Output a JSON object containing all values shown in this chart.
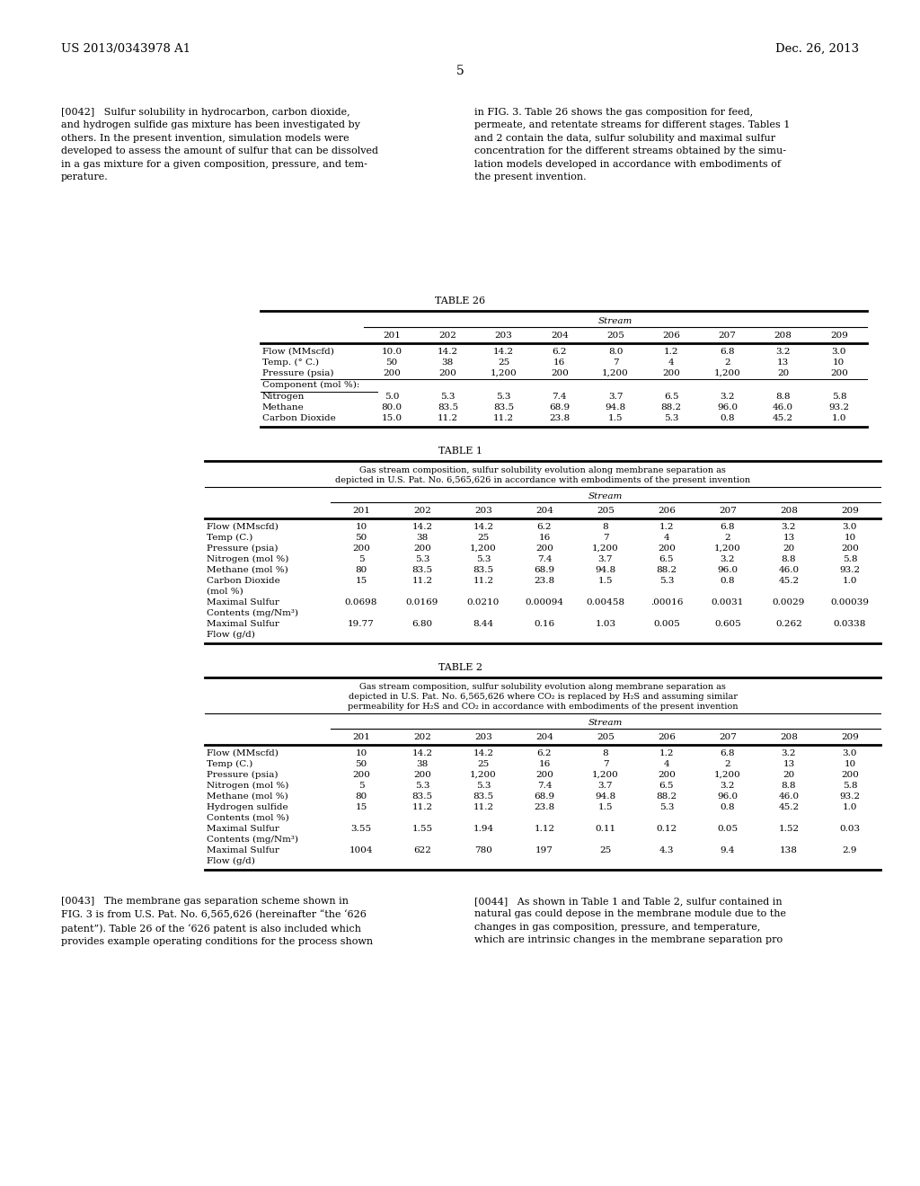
{
  "page_header_left": "US 2013/0343978 A1",
  "page_header_right": "Dec. 26, 2013",
  "page_number": "5",
  "para0042_left": "[0042]   Sulfur solubility in hydrocarbon, carbon dioxide,\nand hydrogen sulfide gas mixture has been investigated by\nothers. In the present invention, simulation models were\ndeveloped to assess the amount of sulfur that can be dissolved\nin a gas mixture for a given composition, pressure, and tem-\nperature.",
  "para0042_right": "in FIG. 3. Table 26 shows the gas composition for feed,\npermeate, and retentate streams for different stages. Tables 1\nand 2 contain the data, sulfur solubility and maximal sulfur\nconcentration for the different streams obtained by the simu-\nlation models developed in accordance with embodiments of\nthe present invention.",
  "table26_title": "TABLE 26",
  "table26_stream_header": "Stream",
  "table26_col_headers": [
    "201",
    "202",
    "203",
    "204",
    "205",
    "206",
    "207",
    "208",
    "209"
  ],
  "table26_rows": [
    [
      "Flow (MMscfd)",
      "10.0",
      "14.2",
      "14.2",
      "6.2",
      "8.0",
      "1.2",
      "6.8",
      "3.2",
      "3.0"
    ],
    [
      "Temp. (° C.)",
      "50",
      "38",
      "25",
      "16",
      "7",
      "4",
      "2",
      "13",
      "10"
    ],
    [
      "Pressure (psia)",
      "200",
      "200",
      "1,200",
      "200",
      "1,200",
      "200",
      "1,200",
      "20",
      "200"
    ],
    [
      "Component (mol %):",
      "",
      "",
      "",
      "",
      "",
      "",
      "",
      "",
      ""
    ],
    [
      "Nitrogen",
      "5.0",
      "5.3",
      "5.3",
      "7.4",
      "3.7",
      "6.5",
      "3.2",
      "8.8",
      "5.8"
    ],
    [
      "Methane",
      "80.0",
      "83.5",
      "83.5",
      "68.9",
      "94.8",
      "88.2",
      "96.0",
      "46.0",
      "93.2"
    ],
    [
      "Carbon Dioxide",
      "15.0",
      "11.2",
      "11.2",
      "23.8",
      "1.5",
      "5.3",
      "0.8",
      "45.2",
      "1.0"
    ]
  ],
  "table1_title": "TABLE 1",
  "table1_caption_line1": "Gas stream composition, sulfur solubility evolution along membrane separation as",
  "table1_caption_line2": "depicted in U.S. Pat. No. 6,565,626 in accordance with embodiments of the present invention",
  "table1_stream_header": "Stream",
  "table1_col_headers": [
    "201",
    "202",
    "203",
    "204",
    "205",
    "206",
    "207",
    "208",
    "209"
  ],
  "table1_rows": [
    [
      "Flow (MMscfd)",
      "10",
      "14.2",
      "14.2",
      "6.2",
      "8",
      "1.2",
      "6.8",
      "3.2",
      "3.0"
    ],
    [
      "Temp (C.)",
      "50",
      "38",
      "25",
      "16",
      "7",
      "4",
      "2",
      "13",
      "10"
    ],
    [
      "Pressure (psia)",
      "200",
      "200",
      "1,200",
      "200",
      "1,200",
      "200",
      "1,200",
      "20",
      "200"
    ],
    [
      "Nitrogen (mol %)",
      "5",
      "5.3",
      "5.3",
      "7.4",
      "3.7",
      "6.5",
      "3.2",
      "8.8",
      "5.8"
    ],
    [
      "Methane (mol %)",
      "80",
      "83.5",
      "83.5",
      "68.9",
      "94.8",
      "88.2",
      "96.0",
      "46.0",
      "93.2"
    ],
    [
      "Carbon Dioxide",
      "15",
      "11.2",
      "11.2",
      "23.8",
      "1.5",
      "5.3",
      "0.8",
      "45.2",
      "1.0"
    ],
    [
      "(mol %)",
      "",
      "",
      "",
      "",
      "",
      "",
      "",
      "",
      ""
    ],
    [
      "Maximal Sulfur",
      "0.0698",
      "0.0169",
      "0.0210",
      "0.00094",
      "0.00458",
      ".00016",
      "0.0031",
      "0.0029",
      "0.00039"
    ],
    [
      "Contents (mg/Nm³)",
      "",
      "",
      "",
      "",
      "",
      "",
      "",
      "",
      ""
    ],
    [
      "Maximal Sulfur",
      "19.77",
      "6.80",
      "8.44",
      "0.16",
      "1.03",
      "0.005",
      "0.605",
      "0.262",
      "0.0338"
    ],
    [
      "Flow (g/d)",
      "",
      "",
      "",
      "",
      "",
      "",
      "",
      "",
      ""
    ]
  ],
  "table2_title": "TABLE 2",
  "table2_caption_line1": "Gas stream composition, sulfur solubility evolution along membrane separation as",
  "table2_caption_line2": "depicted in U.S. Pat. No. 6,565,626 where CO₂ is replaced by H₂S and assuming similar",
  "table2_caption_line3": "permeability for H₂S and CO₂ in accordance with embodiments of the present invention",
  "table2_stream_header": "Stream",
  "table2_col_headers": [
    "201",
    "202",
    "203",
    "204",
    "205",
    "206",
    "207",
    "208",
    "209"
  ],
  "table2_rows": [
    [
      "Flow (MMscfd)",
      "10",
      "14.2",
      "14.2",
      "6.2",
      "8",
      "1.2",
      "6.8",
      "3.2",
      "3.0"
    ],
    [
      "Temp (C.)",
      "50",
      "38",
      "25",
      "16",
      "7",
      "4",
      "2",
      "13",
      "10"
    ],
    [
      "Pressure (psia)",
      "200",
      "200",
      "1,200",
      "200",
      "1,200",
      "200",
      "1,200",
      "20",
      "200"
    ],
    [
      "Nitrogen (mol %)",
      "5",
      "5.3",
      "5.3",
      "7.4",
      "3.7",
      "6.5",
      "3.2",
      "8.8",
      "5.8"
    ],
    [
      "Methane (mol %)",
      "80",
      "83.5",
      "83.5",
      "68.9",
      "94.8",
      "88.2",
      "96.0",
      "46.0",
      "93.2"
    ],
    [
      "Hydrogen sulfide",
      "15",
      "11.2",
      "11.2",
      "23.8",
      "1.5",
      "5.3",
      "0.8",
      "45.2",
      "1.0"
    ],
    [
      "Contents (mol %)",
      "",
      "",
      "",
      "",
      "",
      "",
      "",
      "",
      ""
    ],
    [
      "Maximal Sulfur",
      "3.55",
      "1.55",
      "1.94",
      "1.12",
      "0.11",
      "0.12",
      "0.05",
      "1.52",
      "0.03"
    ],
    [
      "Contents (mg/Nm³)",
      "",
      "",
      "",
      "",
      "",
      "",
      "",
      "",
      ""
    ],
    [
      "Maximal Sulfur",
      "1004",
      "622",
      "780",
      "197",
      "25",
      "4.3",
      "9.4",
      "138",
      "2.9"
    ],
    [
      "Flow (g/d)",
      "",
      "",
      "",
      "",
      "",
      "",
      "",
      "",
      ""
    ]
  ],
  "para0043_left": "[0043]   The membrane gas separation scheme shown in\nFIG. 3 is from U.S. Pat. No. 6,565,626 (hereinafter “the ‘626\npatent”). Table 26 of the ‘626 patent is also included which\nprovides example operating conditions for the process shown",
  "para0044_right": "[0044]   As shown in Table 1 and Table 2, sulfur contained in\nnatural gas could depose in the membrane module due to the\nchanges in gas composition, pressure, and temperature,\nwhich are intrinsic changes in the membrane separation pro"
}
